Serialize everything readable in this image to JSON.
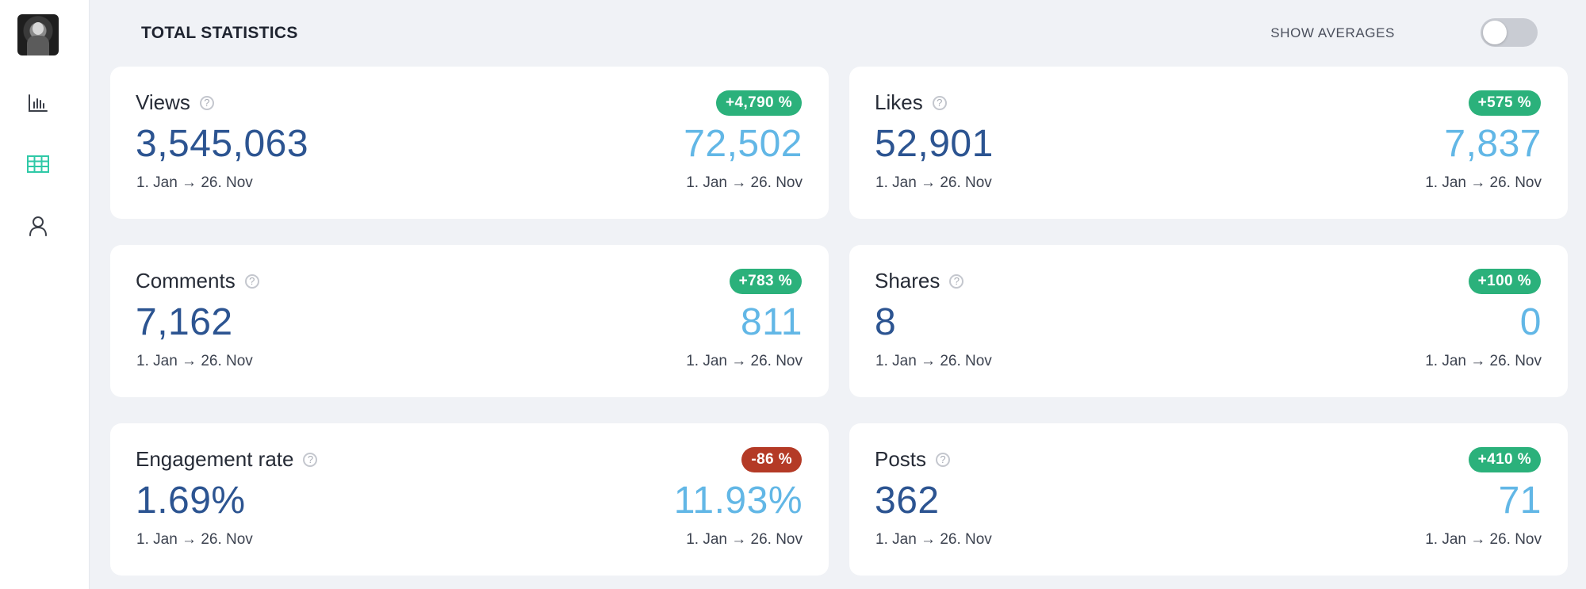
{
  "header": {
    "title": "TOTAL STATISTICS",
    "averages_label": "SHOW AVERAGES"
  },
  "sidebar": {
    "items": [
      {
        "name": "bar-chart-icon",
        "active": false
      },
      {
        "name": "table-grid-icon",
        "active": true
      },
      {
        "name": "user-icon",
        "active": false
      }
    ],
    "active_color": "#2fc9a7",
    "inactive_color": "#3b3f48"
  },
  "colors": {
    "positive": "#2bb17b",
    "negative": "#b43a26",
    "main_value": "#2c5491",
    "average_value": "#62b7e6"
  },
  "cards": [
    {
      "label": "Views",
      "value": "3,545,063",
      "change": "+4,790 %",
      "trend": "positive",
      "average": "72,502",
      "date_main": "1. Jan → 26. Nov",
      "date_avg": "1. Jan → 26. Nov"
    },
    {
      "label": "Likes",
      "value": "52,901",
      "change": "+575 %",
      "trend": "positive",
      "average": "7,837",
      "date_main": "1. Jan → 26. Nov",
      "date_avg": "1. Jan → 26. Nov"
    },
    {
      "label": "Comments",
      "value": "7,162",
      "change": "+783 %",
      "trend": "positive",
      "average": "811",
      "date_main": "1. Jan → 26. Nov",
      "date_avg": "1. Jan → 26. Nov"
    },
    {
      "label": "Shares",
      "value": "8",
      "change": "+100 %",
      "trend": "positive",
      "average": "0",
      "date_main": "1. Jan → 26. Nov",
      "date_avg": "1. Jan → 26. Nov"
    },
    {
      "label": "Engagement rate",
      "value": "1.69%",
      "change": "-86 %",
      "trend": "negative",
      "average": "11.93%",
      "date_main": "1. Jan → 26. Nov",
      "date_avg": "1. Jan → 26. Nov"
    },
    {
      "label": "Posts",
      "value": "362",
      "change": "+410 %",
      "trend": "positive",
      "average": "71",
      "date_main": "1. Jan → 26. Nov",
      "date_avg": "1. Jan → 26. Nov"
    }
  ]
}
